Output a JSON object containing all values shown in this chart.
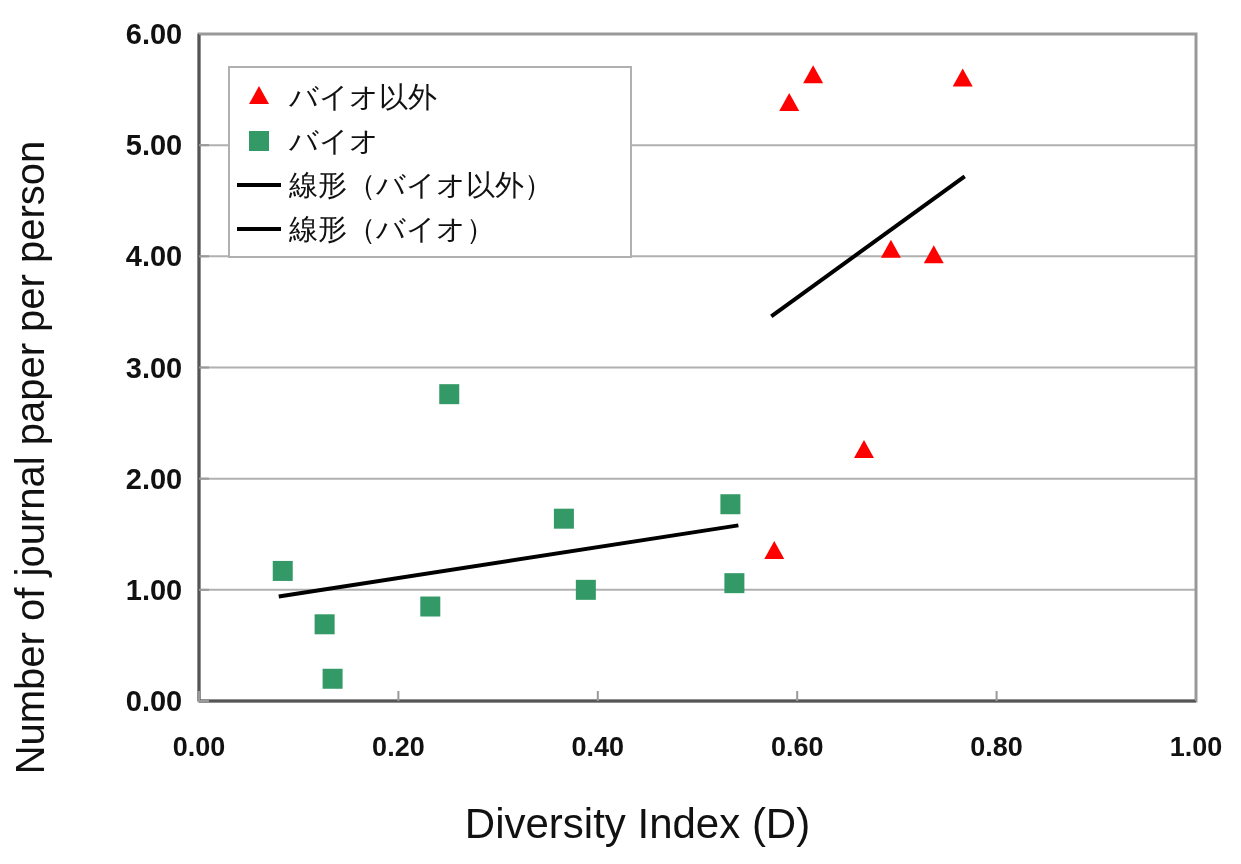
{
  "chart_data": {
    "type": "scatter",
    "xlabel": "Diversity Index (D)",
    "ylabel": "Number of journal paper per person",
    "xlim": [
      0,
      1
    ],
    "ylim": [
      0,
      6
    ],
    "xticks": [
      {
        "value": 0,
        "label": "0.00"
      },
      {
        "value": 0.2,
        "label": "0.20"
      },
      {
        "value": 0.4,
        "label": "0.40"
      },
      {
        "value": 0.6,
        "label": "0.60"
      },
      {
        "value": 0.8,
        "label": "0.80"
      },
      {
        "value": 1,
        "label": "1.00"
      }
    ],
    "yticks": [
      {
        "value": 0,
        "label": "0.00"
      },
      {
        "value": 1,
        "label": "1.00"
      },
      {
        "value": 2,
        "label": "2.00"
      },
      {
        "value": 3,
        "label": "3.00"
      },
      {
        "value": 4,
        "label": "4.00"
      },
      {
        "value": 5,
        "label": "5.00"
      },
      {
        "value": 6,
        "label": "6.00"
      }
    ],
    "grid": "y",
    "legend": "top left",
    "series": [
      {
        "name": "バイオ以外",
        "marker": "triangle",
        "color": "#ff0000",
        "x": [
          0.592,
          0.616,
          0.766,
          0.694,
          0.737,
          0.667,
          0.577
        ],
        "values": [
          5.37,
          5.62,
          5.59,
          4.05,
          4.0,
          2.25,
          1.34
        ]
      },
      {
        "name": "バイオ",
        "marker": "square",
        "color": "#339966",
        "x": [
          0.084,
          0.126,
          0.134,
          0.232,
          0.251,
          0.366,
          0.388,
          0.533,
          0.537
        ],
        "values": [
          1.17,
          0.69,
          0.2,
          0.85,
          2.76,
          1.64,
          1.0,
          1.77,
          1.06
        ]
      },
      {
        "name": "線形（バイオ以外）",
        "type": "line",
        "marker": "none",
        "color": "#000000",
        "x": [
          0.574,
          0.768
        ],
        "values": [
          3.46,
          4.72
        ]
      },
      {
        "name": "線形（バイオ）",
        "type": "line",
        "marker": "none",
        "color": "#000000",
        "x": [
          0.08,
          0.541
        ],
        "values": [
          0.94,
          1.58
        ]
      }
    ]
  }
}
